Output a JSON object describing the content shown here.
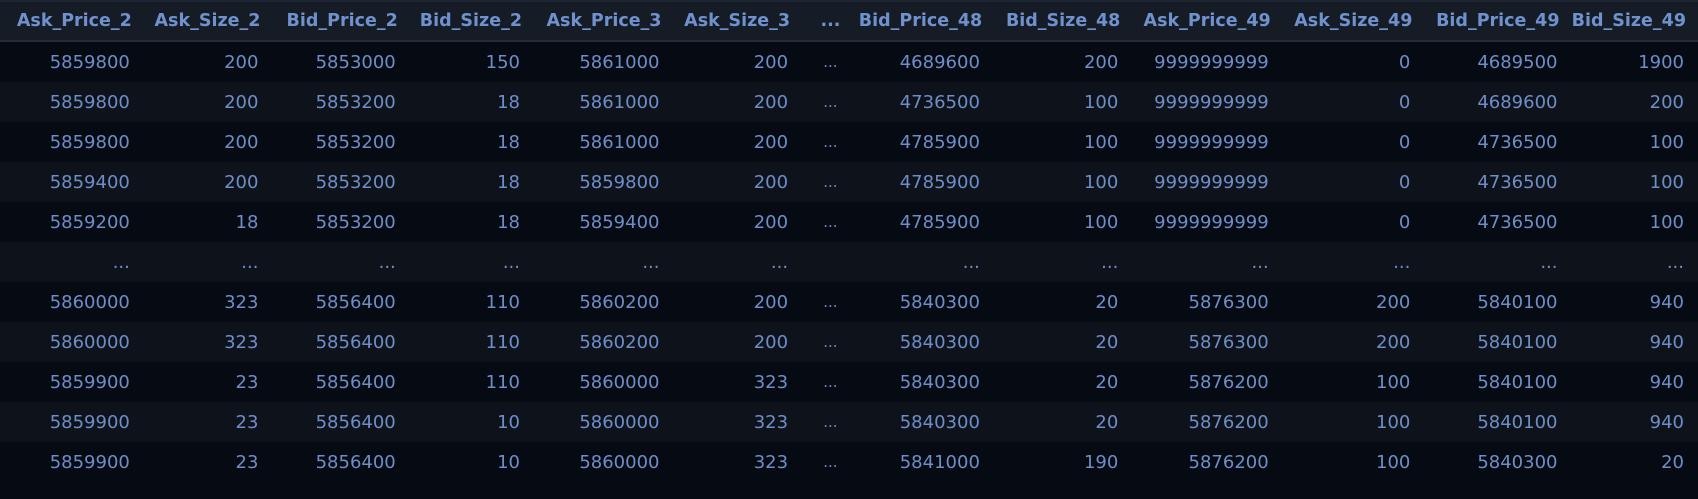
{
  "table": {
    "columns": [
      "Ask_Price_2",
      "Ask_Size_2",
      "Bid_Price_2",
      "Bid_Size_2",
      "Ask_Price_3",
      "Ask_Size_3",
      "...",
      "Bid_Price_48",
      "Bid_Size_48",
      "Ask_Price_49",
      "Ask_Size_49",
      "Bid_Price_49",
      "Bid_Size_49"
    ],
    "rows": [
      [
        "5859800",
        "200",
        "5853000",
        "150",
        "5861000",
        "200",
        "...",
        "4689600",
        "200",
        "9999999999",
        "0",
        "4689500",
        "1900"
      ],
      [
        "5859800",
        "200",
        "5853200",
        "18",
        "5861000",
        "200",
        "...",
        "4736500",
        "100",
        "9999999999",
        "0",
        "4689600",
        "200"
      ],
      [
        "5859800",
        "200",
        "5853200",
        "18",
        "5861000",
        "200",
        "...",
        "4785900",
        "100",
        "9999999999",
        "0",
        "4736500",
        "100"
      ],
      [
        "5859400",
        "200",
        "5853200",
        "18",
        "5859800",
        "200",
        "...",
        "4785900",
        "100",
        "9999999999",
        "0",
        "4736500",
        "100"
      ],
      [
        "5859200",
        "18",
        "5853200",
        "18",
        "5859400",
        "200",
        "...",
        "4785900",
        "100",
        "9999999999",
        "0",
        "4736500",
        "100"
      ],
      [
        "...",
        "...",
        "...",
        "...",
        "...",
        "...",
        "",
        "...",
        "...",
        "...",
        "...",
        "...",
        "..."
      ],
      [
        "5860000",
        "323",
        "5856400",
        "110",
        "5860200",
        "200",
        "...",
        "5840300",
        "20",
        "5876300",
        "200",
        "5840100",
        "940"
      ],
      [
        "5860000",
        "323",
        "5856400",
        "110",
        "5860200",
        "200",
        "...",
        "5840300",
        "20",
        "5876300",
        "200",
        "5840100",
        "940"
      ],
      [
        "5859900",
        "23",
        "5856400",
        "110",
        "5860000",
        "323",
        "...",
        "5840300",
        "20",
        "5876200",
        "100",
        "5840100",
        "940"
      ],
      [
        "5859900",
        "23",
        "5856400",
        "10",
        "5860000",
        "323",
        "...",
        "5840300",
        "20",
        "5876200",
        "100",
        "5840100",
        "940"
      ],
      [
        "5859900",
        "23",
        "5856400",
        "10",
        "5860000",
        "323",
        "...",
        "5841000",
        "190",
        "5876200",
        "100",
        "5840300",
        "20"
      ]
    ]
  },
  "colors": {
    "background": "#060a12",
    "header_background": "#161c26",
    "row_stripe": "#0e131b",
    "header_text": "#6f92cf",
    "cell_text": "#6e8ec9"
  }
}
